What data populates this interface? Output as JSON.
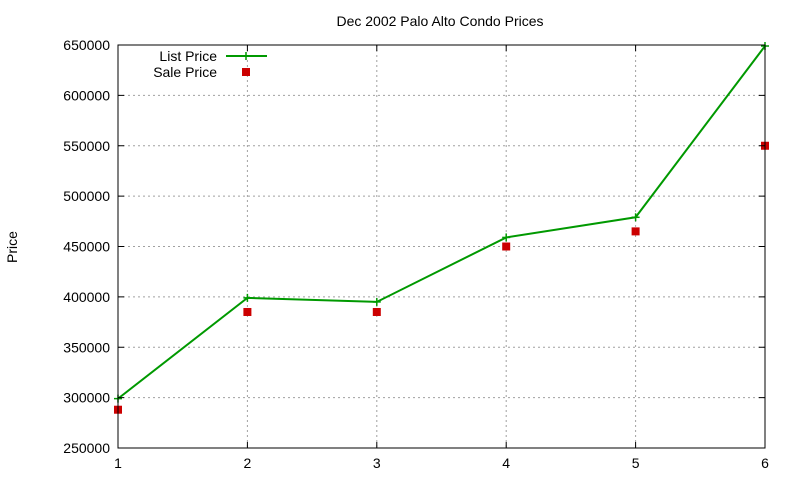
{
  "chart_data": {
    "type": "line",
    "title": "Dec 2002 Palo Alto Condo Prices",
    "xlabel": "",
    "ylabel": "Price",
    "xlim": [
      1,
      6
    ],
    "ylim": [
      250000,
      650000
    ],
    "xticks": [
      "1",
      "2",
      "3",
      "4",
      "5",
      "6"
    ],
    "yticks": [
      "250000",
      "300000",
      "350000",
      "400000",
      "450000",
      "500000",
      "550000",
      "600000",
      "650000"
    ],
    "grid": true,
    "legend_position": "top-left",
    "x": [
      1,
      2,
      3,
      4,
      5,
      6
    ],
    "series": [
      {
        "name": "List Price",
        "style": "linespoints",
        "marker": "plus",
        "color": "#009900",
        "values": [
          299000,
          399000,
          395000,
          459000,
          479000,
          649000
        ]
      },
      {
        "name": "Sale Price",
        "style": "points",
        "marker": "square",
        "color": "#cc0000",
        "values": [
          288000,
          385000,
          385000,
          450000,
          465000,
          550000
        ]
      }
    ]
  }
}
